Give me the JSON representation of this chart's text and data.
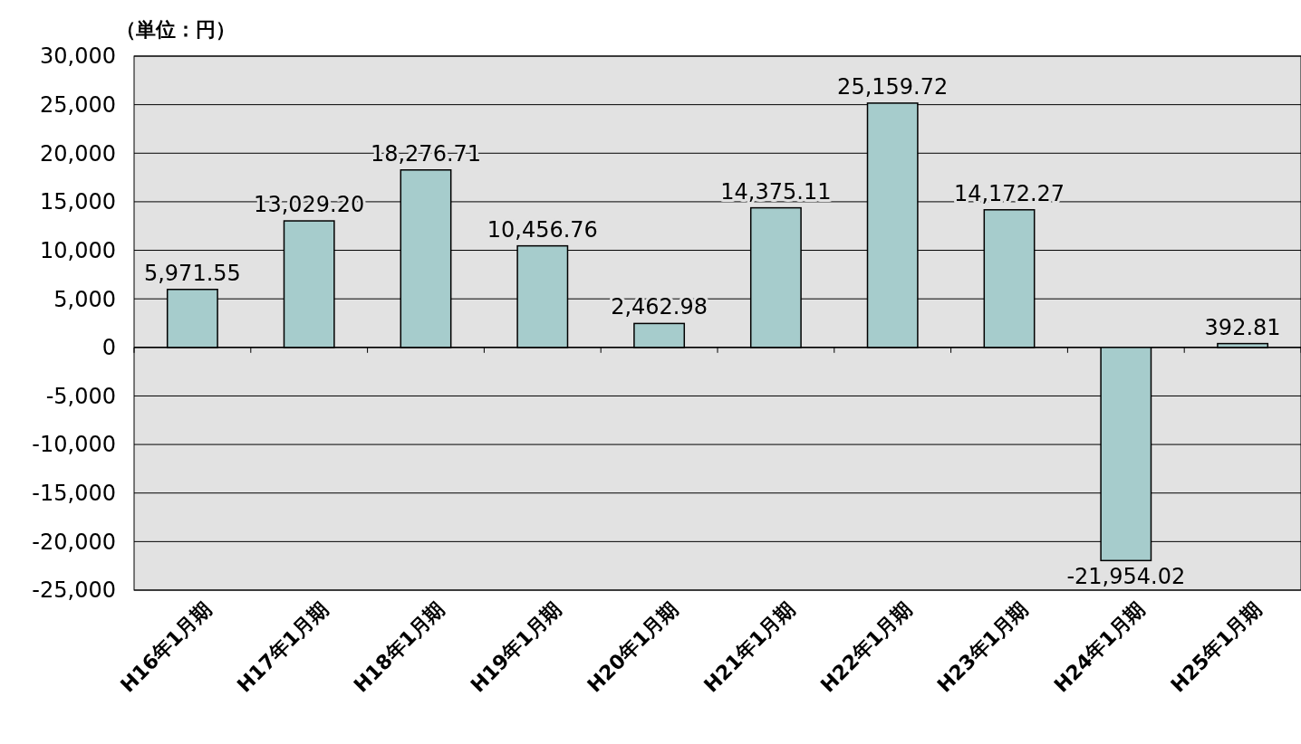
{
  "chart_data": {
    "type": "bar",
    "categories": [
      "H16年1月期",
      "H17年1月期",
      "H18年1月期",
      "H19年1月期",
      "H20年1月期",
      "H21年1月期",
      "H22年1月期",
      "H23年1月期",
      "H24年1月期",
      "H25年1月期"
    ],
    "values": [
      5971.55,
      13029.2,
      18276.71,
      10456.76,
      2462.98,
      14375.11,
      25159.72,
      14172.27,
      -21954.02,
      392.81
    ],
    "value_labels": [
      "5,971.55",
      "13,029.20",
      "18,276.71",
      "10,456.76",
      "2,462.98",
      "14,375.11",
      "25,159.72",
      "14,172.27",
      "-21,954.02",
      "392.81"
    ],
    "color": "#a6cccc",
    "ylim": [
      -25000,
      30000
    ],
    "yticks": [
      {
        "value": -25000,
        "label": "-25,000"
      },
      {
        "value": -20000,
        "label": "-20,000"
      },
      {
        "value": -15000,
        "label": "-15,000"
      },
      {
        "value": -10000,
        "label": "-10,000"
      },
      {
        "value": -5000,
        "label": "-5,000"
      },
      0,
      {
        "value": 5000,
        "label": "5,000"
      },
      {
        "value": 10000,
        "label": "10,000"
      },
      {
        "value": 15000,
        "label": "15,000"
      },
      {
        "value": 20000,
        "label": "20,000"
      },
      {
        "value": 25000,
        "label": "25,000"
      },
      {
        "value": 30000,
        "label": "30,000"
      }
    ],
    "grid": "y",
    "annotations": [
      "（単位：円）"
    ]
  }
}
